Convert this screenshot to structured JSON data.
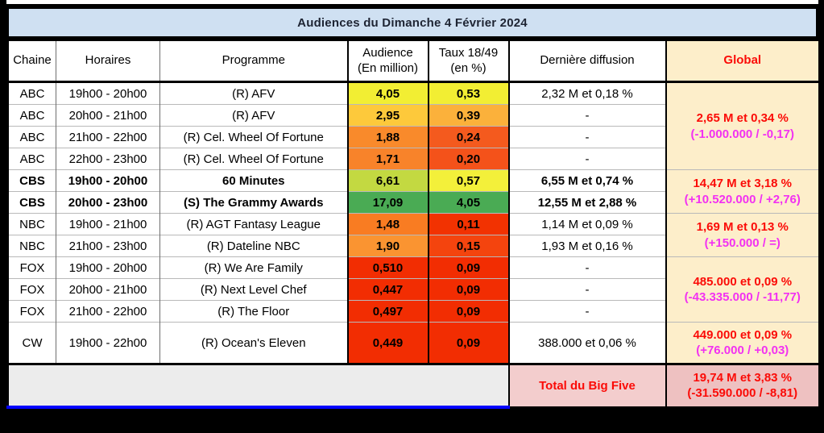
{
  "title": "Audiences du Dimanche 4 Février 2024",
  "columns": {
    "chaine": "Chaine",
    "horaires": "Horaires",
    "programme": "Programme",
    "audience_line1": "Audience",
    "audience_line2": "(En million)",
    "taux_line1": "Taux 18/49",
    "taux_line2": "(en %)",
    "derniere": "Dernière diffusion",
    "global": "Global"
  },
  "groups": [
    {
      "channel": "ABC",
      "bold": false,
      "tall": false,
      "global": {
        "line1": "2,65 M et 0,34 %",
        "line2": "(-1.000.000 / -0,17)"
      },
      "rows": [
        {
          "time": "19h00 - 20h00",
          "program": "(R) AFV",
          "audience": "4,05",
          "audience_bg": "#f2ee33",
          "rate": "0,53",
          "rate_bg": "#f2ee33",
          "last": "2,32 M et 0,18 %"
        },
        {
          "time": "20h00 - 21h00",
          "program": "(R) AFV",
          "audience": "2,95",
          "audience_bg": "#fdc93b",
          "rate": "0,39",
          "rate_bg": "#fbb13b",
          "last": "-"
        },
        {
          "time": "21h00 - 22h00",
          "program": "(R) Cel. Wheel Of Fortune",
          "audience": "1,88",
          "audience_bg": "#f98a2b",
          "rate": "0,24",
          "rate_bg": "#f45a1e",
          "last": "-"
        },
        {
          "time": "22h00 - 23h00",
          "program": "(R) Cel. Wheel Of Fortune",
          "audience": "1,71",
          "audience_bg": "#f8832a",
          "rate": "0,20",
          "rate_bg": "#f4521a",
          "last": "-"
        }
      ]
    },
    {
      "channel": "CBS",
      "bold": true,
      "tall": false,
      "global": {
        "line1": "14,47 M et 3,18 %",
        "line2": "(+10.520.000 / +2,76)"
      },
      "rows": [
        {
          "time": "19h00 - 20h00",
          "program": "60 Minutes",
          "audience": "6,61",
          "audience_bg": "#c3d941",
          "rate": "0,57",
          "rate_bg": "#f3f03a",
          "last": "6,55 M et 0,74 %"
        },
        {
          "time": "20h00 - 23h00",
          "program": "(S) The Grammy Awards",
          "audience": "17,09",
          "audience_bg": "#4aab54",
          "rate": "4,05",
          "rate_bg": "#4aab54",
          "last": "12,55 M et 2,88 %"
        }
      ]
    },
    {
      "channel": "NBC",
      "bold": false,
      "tall": false,
      "global": {
        "line1": "1,69 M et 0,13 %",
        "line2": "(+150.000 / =)"
      },
      "rows": [
        {
          "time": "19h00 - 21h00",
          "program": "(R) AGT Fantasy League",
          "audience": "1,48",
          "audience_bg": "#f97c22",
          "rate": "0,11",
          "rate_bg": "#f23201",
          "last": "1,14 M et 0,09 %"
        },
        {
          "time": "21h00 - 23h00",
          "program": "(R) Dateline NBC",
          "audience": "1,90",
          "audience_bg": "#fa9431",
          "rate": "0,15",
          "rate_bg": "#f4440e",
          "last": "1,93 M et 0,16 %"
        }
      ]
    },
    {
      "channel": "FOX",
      "bold": false,
      "tall": false,
      "global": {
        "line1": "485.000 et 0,09 %",
        "line2": "(-43.335.000 / -11,77)"
      },
      "rows": [
        {
          "time": "19h00 - 20h00",
          "program": "(R) We Are Family",
          "audience": "0,510",
          "audience_bg": "#f22d02",
          "rate": "0,09",
          "rate_bg": "#f22d02",
          "last": "-"
        },
        {
          "time": "20h00 - 21h00",
          "program": "(R) Next Level Chef",
          "audience": "0,447",
          "audience_bg": "#f22d02",
          "rate": "0,09",
          "rate_bg": "#f22d02",
          "last": "-"
        },
        {
          "time": "21h00 - 22h00",
          "program": "(R) The Floor",
          "audience": "0,497",
          "audience_bg": "#f22d02",
          "rate": "0,09",
          "rate_bg": "#f22d02",
          "last": "-"
        }
      ]
    },
    {
      "channel": "CW",
      "bold": false,
      "tall": true,
      "global": {
        "line1": "449.000 et 0,09 %",
        "line2": "(+76.000 / +0,03)"
      },
      "rows": [
        {
          "time": "19h00 - 22h00",
          "program": "(R) Ocean's Eleven",
          "audience": "0,449",
          "audience_bg": "#f22d02",
          "rate": "0,09",
          "rate_bg": "#f22d02",
          "last": "388.000 et 0,06 %"
        }
      ]
    }
  ],
  "footer": {
    "label": "Total du Big Five",
    "total_line1": "19,74 M et 3,83 %",
    "total_line2": "(-31.590.000 / -8,81)"
  },
  "colors": {
    "title_bg": "#cfe0f2",
    "global_header_bg": "#fdeeca",
    "global_cell_bg": "#fdeeca",
    "total_label_bg": "#f3cdcd",
    "total_value_bg": "#eec1c1",
    "footer_gray_bg": "#ececec",
    "blue_line": "#0202ff",
    "red_text": "#fb0b07",
    "magenta_text": "#f231f2"
  }
}
